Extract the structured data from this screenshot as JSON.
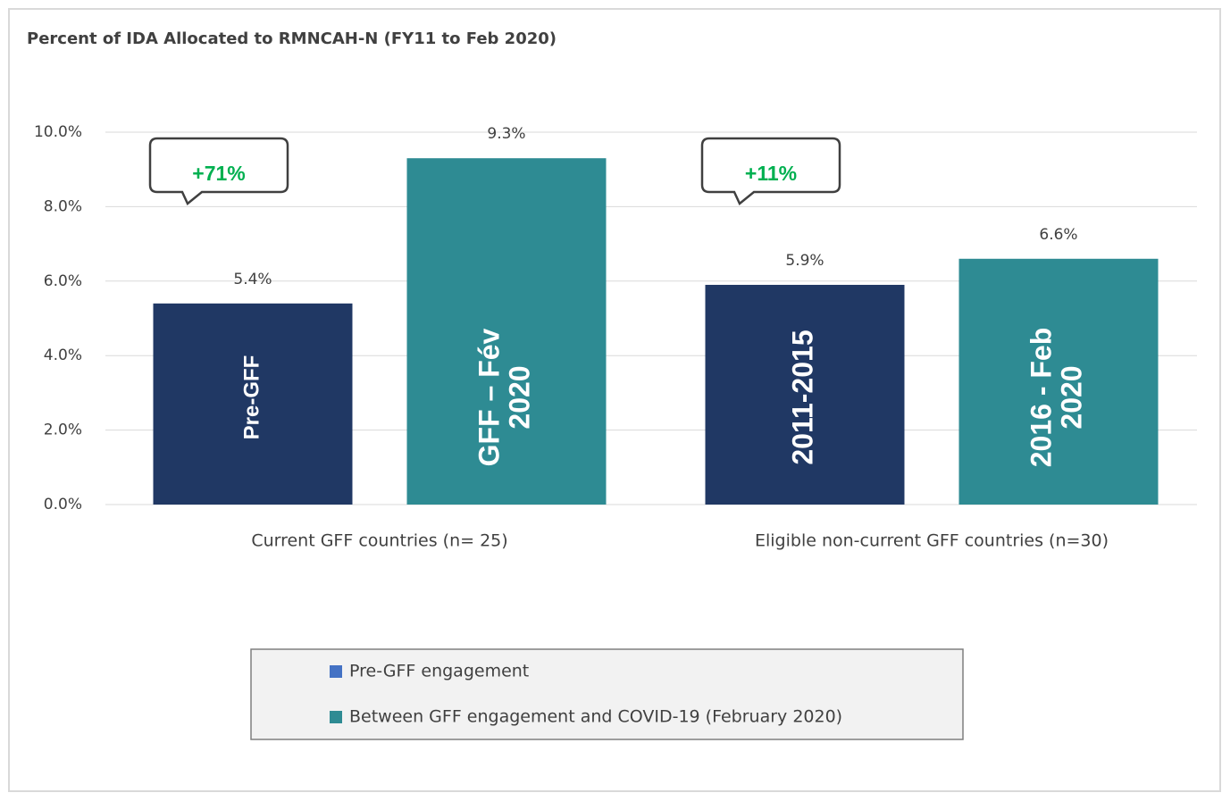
{
  "chart_data": {
    "type": "bar",
    "title": "Percent of IDA Allocated to RMNCAH-N (FY11 to Feb 2020)",
    "categories": [
      "Current GFF countries (n= 25)",
      "Eligible non-current GFF countries (n=30)"
    ],
    "series": [
      {
        "name": "Pre-GFF engagement",
        "color": "#203864",
        "legend_color": "#4472c4",
        "values": [
          5.4,
          5.9
        ],
        "value_labels": [
          "5.4%",
          "5.9%"
        ],
        "labels": [
          [
            "Pre-GFF"
          ],
          [
            "2011-2015"
          ]
        ]
      },
      {
        "name": "Between GFF engagement and COVID-19 (February 2020)",
        "color": "#2e8b93",
        "legend_color": "#2e8b93",
        "values": [
          9.3,
          6.6
        ],
        "value_labels": [
          "9.3%",
          "6.6%"
        ],
        "labels": [
          [
            "GFF – Fév",
            "2020"
          ],
          [
            "2016 - Feb",
            "2020"
          ]
        ]
      }
    ],
    "annotations": [
      "+71%",
      "+11%"
    ],
    "ylim": [
      0,
      10
    ],
    "yticks": [
      {
        "value": 0,
        "label": "0.0%"
      },
      {
        "value": 2,
        "label": "2.0%"
      },
      {
        "value": 4,
        "label": "4.0%"
      },
      {
        "value": 6,
        "label": "6.0%"
      },
      {
        "value": 8,
        "label": "8.0%"
      },
      {
        "value": 10,
        "label": "10.0%"
      }
    ],
    "grid": true,
    "legend": "bottom"
  }
}
